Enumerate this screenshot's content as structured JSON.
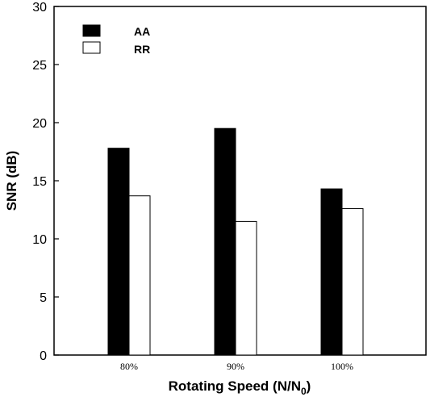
{
  "chart_data": {
    "type": "bar",
    "categories": [
      "80%",
      "90%",
      "100%"
    ],
    "series": [
      {
        "name": "AA",
        "values": [
          17.8,
          19.5,
          14.3
        ],
        "color": "#000000",
        "fill": "solid"
      },
      {
        "name": "RR",
        "values": [
          13.7,
          11.5,
          12.6
        ],
        "color": "#ffffff",
        "fill": "hollow"
      }
    ],
    "ylim": [
      0,
      30
    ],
    "yticks": [
      0,
      5,
      10,
      15,
      20,
      25,
      30
    ],
    "ylabel": "SNR (dB)",
    "xlabel_main": "Rotating Speed (N/N",
    "xlabel_sub": "0",
    "xlabel_close": ")",
    "legend_position": "top-left",
    "grid": false
  }
}
